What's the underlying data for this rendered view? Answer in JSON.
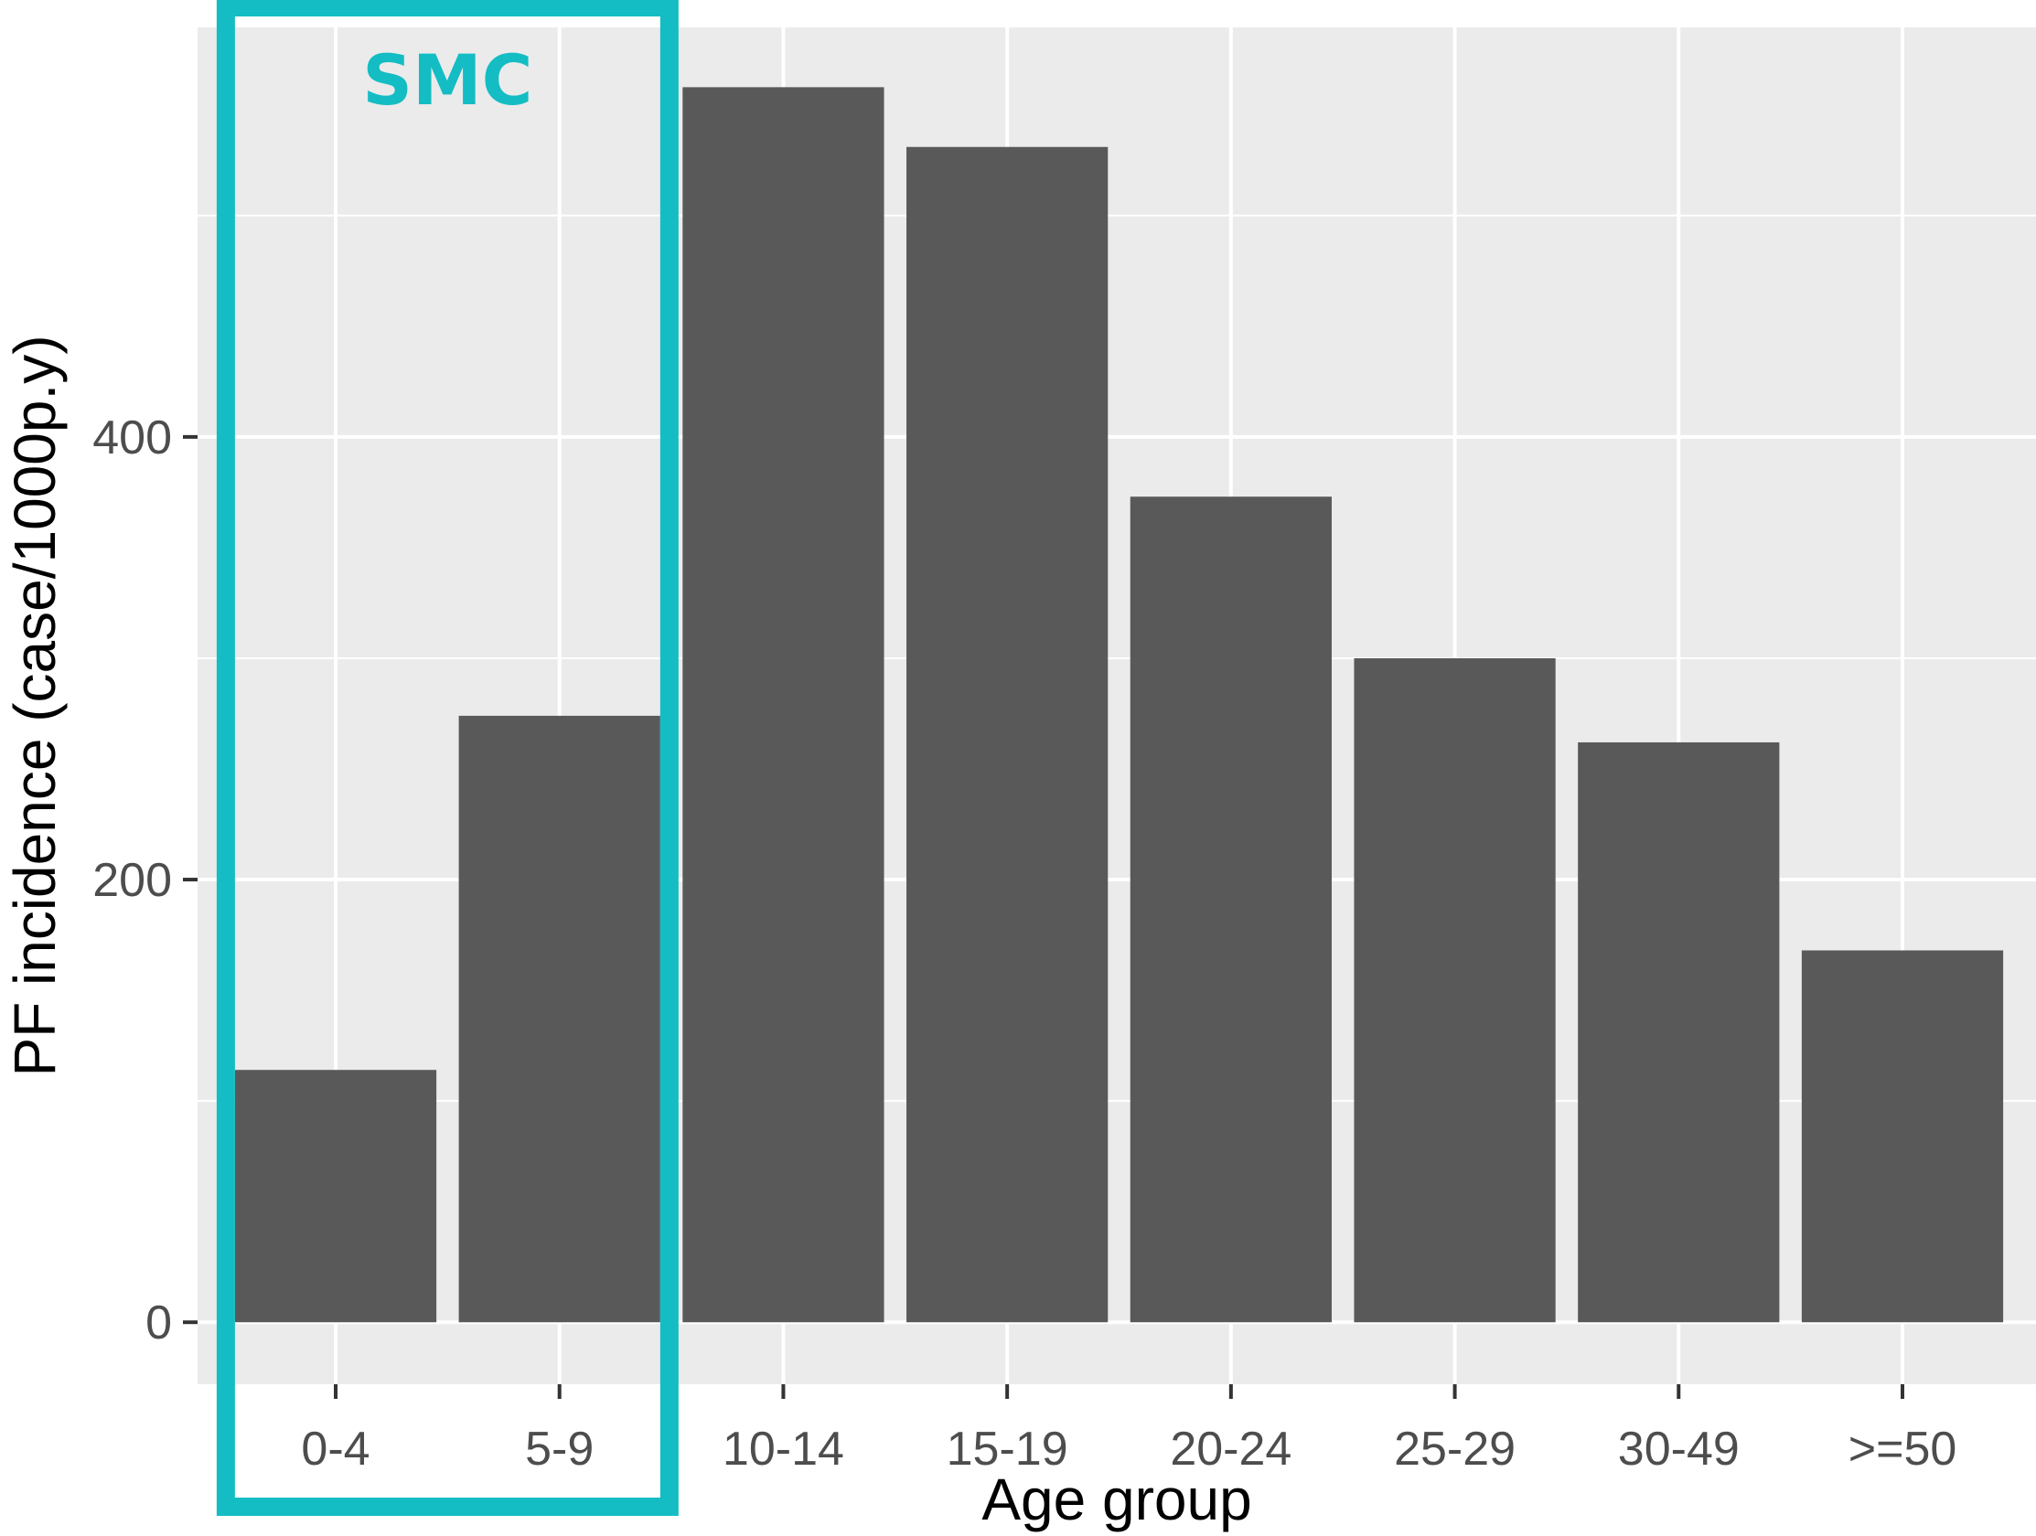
{
  "chart_data": {
    "type": "bar",
    "title": "",
    "xlabel": "Age group",
    "ylabel": "PF incidence (case/1000p.y)",
    "categories": [
      "0-4",
      "5-9",
      "10-14",
      "15-19",
      "20-24",
      "25-29",
      "30-49",
      ">=50"
    ],
    "values": [
      114,
      274,
      558,
      531,
      373,
      300,
      262,
      168
    ],
    "ylim": [
      -28,
      585
    ],
    "yticks": [
      0,
      200,
      400
    ],
    "yticklabels": [
      "0",
      "200",
      "400"
    ],
    "grid": true,
    "legend": "none",
    "colors": {
      "bar": "#595959",
      "panel": "#ebebeb",
      "grid": "#ffffff",
      "annotation": "#13bdc3"
    },
    "annotation": {
      "label": "SMC",
      "spans_categories": [
        "0-4",
        "5-9"
      ]
    }
  }
}
